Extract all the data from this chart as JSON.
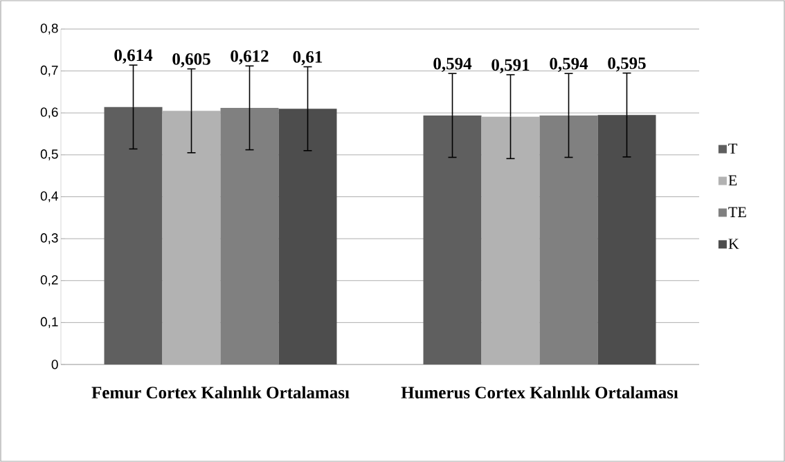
{
  "chart_data": {
    "type": "bar",
    "categories": [
      "Femur Cortex Kalınlık Ortalaması",
      "Humerus Cortex Kalınlık Ortalaması"
    ],
    "series": [
      {
        "name": "T",
        "color": "#5f5f5f",
        "values": [
          0.614,
          0.594
        ],
        "errors": [
          0.1,
          0.1
        ],
        "value_labels": [
          "0,614",
          "0,594"
        ]
      },
      {
        "name": "E",
        "color": "#b2b2b2",
        "values": [
          0.605,
          0.591
        ],
        "errors": [
          0.1,
          0.1
        ],
        "value_labels": [
          "0,605",
          "0,591"
        ]
      },
      {
        "name": "TE",
        "color": "#808080",
        "values": [
          0.612,
          0.594
        ],
        "errors": [
          0.1,
          0.1
        ],
        "value_labels": [
          "0,612",
          "0,594"
        ]
      },
      {
        "name": "K",
        "color": "#4d4d4d",
        "values": [
          0.61,
          0.595
        ],
        "errors": [
          0.1,
          0.1
        ],
        "value_labels": [
          "0,61",
          "0,595"
        ]
      }
    ],
    "ylim": [
      0,
      0.8
    ],
    "yticks": [
      0,
      {
        "value": 0.1,
        "label": "0,1"
      },
      {
        "value": 0.2,
        "label": "0,2"
      },
      {
        "value": 0.3,
        "label": "0,3"
      },
      {
        "value": 0.4,
        "label": "0,4"
      },
      {
        "value": 0.5,
        "label": "0,5"
      },
      {
        "value": 0.6,
        "label": "0,6"
      },
      {
        "value": 0.7,
        "label": "0,7"
      },
      {
        "value": 0.8,
        "label": "0,8"
      }
    ],
    "grid": "y",
    "legend": "right"
  }
}
